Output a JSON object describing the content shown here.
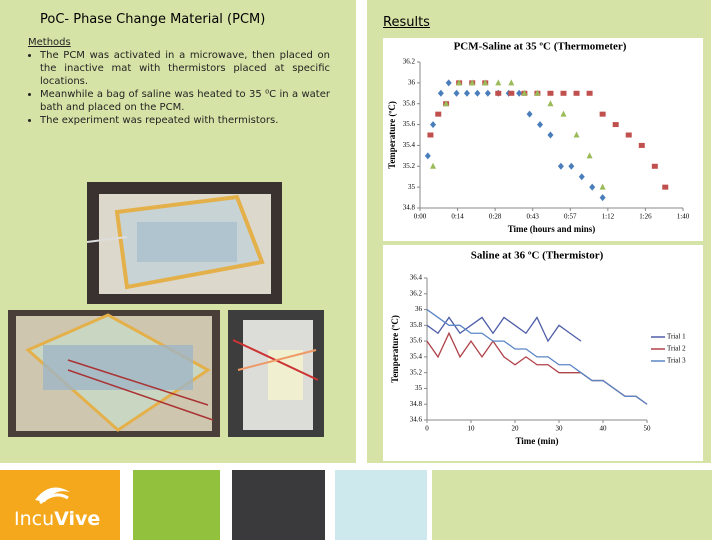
{
  "title": "PoC- Phase Change Material (PCM)",
  "methods": {
    "heading": "Methods",
    "items": [
      "The PCM was activated in a microwave, then placed on the inactive mat with thermistors placed at specific locations.",
      "Meanwhile a bag of saline was heated to 35 ⁰C in a water bath and placed on the PCM.",
      "The experiment was repeated with thermistors."
    ]
  },
  "results_heading": "Results",
  "logo": {
    "part1": "Incu",
    "part2": "Vive"
  },
  "chart_data": [
    {
      "type": "scatter",
      "title": "PCM-Saline at 35 ºC (Thermometer)",
      "x_label": "Time (hours and mins)",
      "y_label": "Temperature (ºC)",
      "xlim": [
        0,
        100.8
      ],
      "xticks": [
        {
          "value": 0,
          "label": "0:00"
        },
        {
          "value": 14.4,
          "label": "0:14"
        },
        {
          "value": 28.8,
          "label": "0:28"
        },
        {
          "value": 43.2,
          "label": "0:43"
        },
        {
          "value": 57.6,
          "label": "0:57"
        },
        {
          "value": 72,
          "label": "1:12"
        },
        {
          "value": 86.4,
          "label": "1:26"
        },
        {
          "value": 100.8,
          "label": "1:40"
        }
      ],
      "ylim": [
        34.8,
        36.2
      ],
      "yticks": [
        34.8,
        35,
        35.2,
        35.4,
        35.6,
        35.8,
        36,
        36.2
      ],
      "grid": false,
      "series": [
        {
          "color": "#4a7ebb",
          "marker": "diamond",
          "x": [
            3,
            5,
            8,
            11,
            14,
            18,
            22,
            26,
            30,
            34,
            38,
            42,
            46,
            50,
            54,
            58,
            62,
            66,
            70
          ],
          "values": [
            35.3,
            35.6,
            35.9,
            36,
            35.9,
            35.9,
            35.9,
            35.9,
            35.9,
            35.9,
            35.9,
            35.7,
            35.6,
            35.5,
            35.2,
            35.2,
            35.1,
            35,
            34.9
          ]
        },
        {
          "color": "#c0504d",
          "marker": "square",
          "x": [
            4,
            7,
            10,
            15,
            20,
            25,
            30,
            35,
            40,
            45,
            50,
            55,
            60,
            65,
            70,
            75,
            80,
            85,
            90,
            94
          ],
          "values": [
            35.5,
            35.7,
            35.8,
            36,
            36,
            36,
            35.9,
            35.9,
            35.9,
            35.9,
            35.9,
            35.9,
            35.9,
            35.9,
            35.7,
            35.6,
            35.5,
            35.4,
            35.2,
            35
          ]
        },
        {
          "color": "#9bbb59",
          "marker": "triangle",
          "x": [
            5,
            10,
            15,
            20,
            25,
            30,
            35,
            40,
            45,
            50,
            55,
            60,
            65,
            70
          ],
          "values": [
            35.2,
            35.8,
            36,
            36,
            36,
            36,
            36,
            35.9,
            35.9,
            35.8,
            35.7,
            35.5,
            35.3,
            35
          ]
        }
      ]
    },
    {
      "type": "line",
      "title": "Saline at 36 ºC (Thermistor)",
      "x_label": "Time (min)",
      "y_label": "Temperature (ºC)",
      "xlim": [
        0,
        50
      ],
      "xticks": [
        0,
        10,
        20,
        30,
        40,
        50
      ],
      "ylim": [
        34.6,
        36.4
      ],
      "yticks": [
        34.6,
        34.8,
        35,
        35.2,
        35.4,
        35.6,
        35.8,
        36,
        36.2,
        36.4
      ],
      "grid": false,
      "legend": "right",
      "x": [
        0,
        2.5,
        5,
        7.5,
        10,
        12.5,
        15,
        17.5,
        20,
        22.5,
        25,
        27.5,
        30,
        32.5,
        35,
        37.5,
        40,
        42.5,
        45,
        47.5,
        50
      ],
      "series": [
        {
          "name": "Trial 1",
          "color": "#4f5fa8",
          "values": [
            35.8,
            35.7,
            35.9,
            35.7,
            35.8,
            35.9,
            35.7,
            35.9,
            35.8,
            35.7,
            35.9,
            35.6,
            35.8,
            35.7,
            35.6,
            null,
            null,
            null,
            null,
            null,
            null
          ]
        },
        {
          "name": "Trial 2",
          "color": "#b0434a",
          "values": [
            35.6,
            35.4,
            35.7,
            35.4,
            35.6,
            35.4,
            35.6,
            35.4,
            35.3,
            35.4,
            35.3,
            35.3,
            35.2,
            35.2,
            35.2,
            35.1,
            35.1,
            35,
            34.9,
            34.9,
            34.8
          ]
        },
        {
          "name": "Trial 3",
          "color": "#5b86c5",
          "values": [
            36,
            35.9,
            35.8,
            35.8,
            35.7,
            35.7,
            35.6,
            35.6,
            35.5,
            35.5,
            35.4,
            35.4,
            35.3,
            35.3,
            35.2,
            35.1,
            35.1,
            35,
            34.9,
            34.9,
            34.8
          ]
        }
      ]
    }
  ]
}
